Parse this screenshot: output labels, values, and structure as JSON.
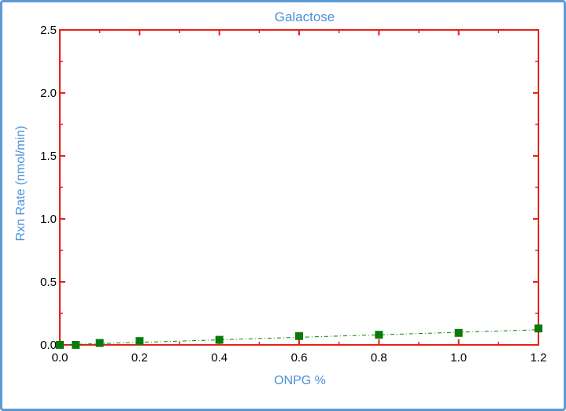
{
  "chart_data": {
    "type": "scatter",
    "title": "Galactose",
    "xlabel": "ONPG %",
    "ylabel": "Rxn Rate (nmol/min)",
    "xlim": [
      0,
      1.2
    ],
    "ylim": [
      0,
      2.5
    ],
    "x_ticks": [
      "0.0",
      "0.2",
      "0.4",
      "0.6",
      "0.8",
      "1.0",
      "1.2"
    ],
    "y_ticks": [
      "0.0",
      "0.5",
      "1.0",
      "1.5",
      "2.0",
      "2.5"
    ],
    "x_tick_values": [
      0,
      0.2,
      0.4,
      0.6,
      0.8,
      1.0,
      1.2
    ],
    "y_tick_values": [
      0,
      0.5,
      1.0,
      1.5,
      2.0,
      2.5
    ],
    "grid": false,
    "series": [
      {
        "x": [
          0,
          0.04,
          0.1,
          0.2,
          0.4,
          0.6,
          0.8,
          1.0,
          1.2
        ],
        "y": [
          0.0,
          0.0,
          0.015,
          0.03,
          0.04,
          0.07,
          0.08,
          0.095,
          0.13
        ],
        "marker": "square",
        "color": "#0a7a0a"
      }
    ],
    "trendline": {
      "x": [
        0,
        1.2
      ],
      "y": [
        0.0,
        0.12
      ],
      "style": "dash-dot",
      "color": "#0a7a0a"
    },
    "axis_color": "#e8201a",
    "text_color": "#4a90d9"
  }
}
